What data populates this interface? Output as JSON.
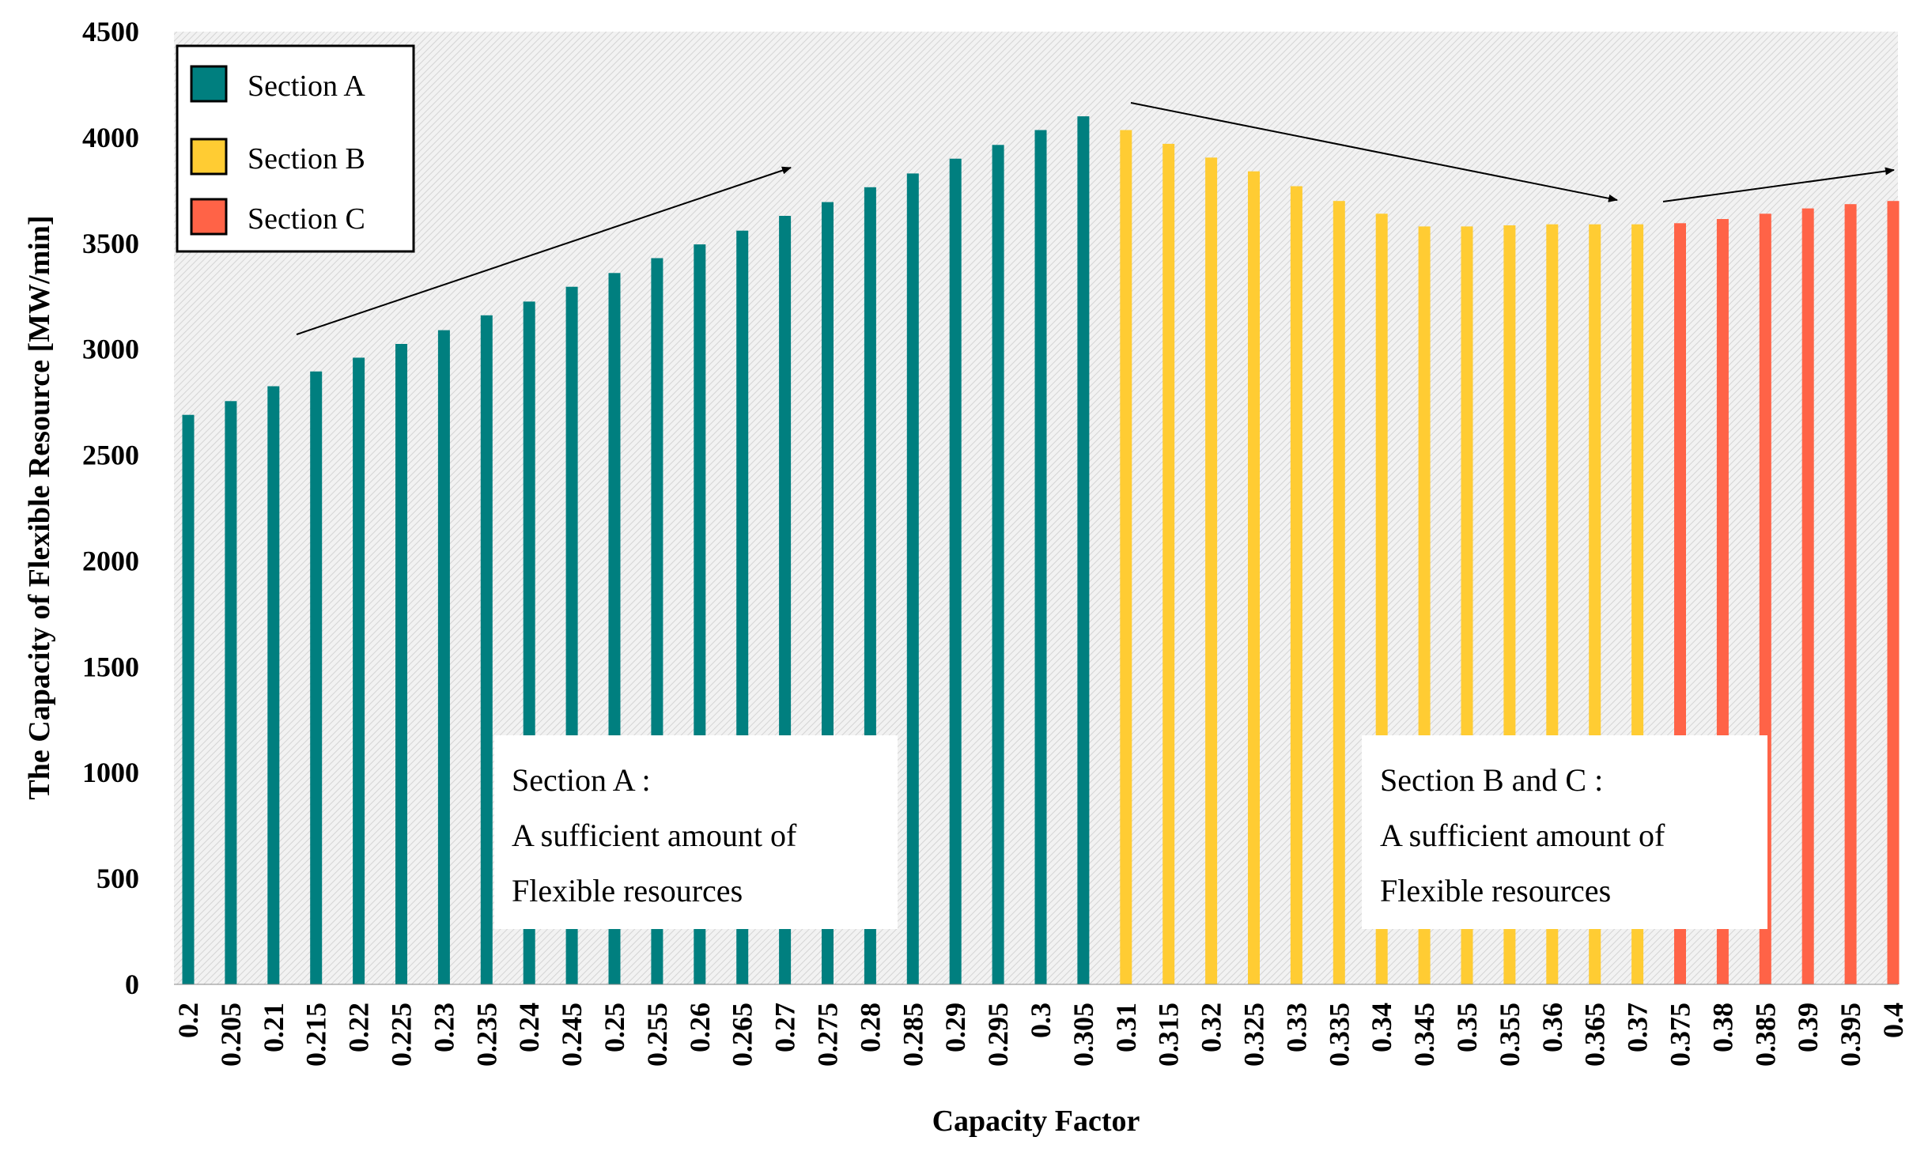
{
  "chart_data": {
    "type": "bar",
    "title": "",
    "xlabel": "Capacity Factor",
    "ylabel": "The Capacity of Flexible Resource [MW/min]",
    "ylim": [
      0,
      4500
    ],
    "yticks": [
      0,
      500,
      1000,
      1500,
      2000,
      2500,
      3000,
      3500,
      4000,
      4500
    ],
    "grid": false,
    "legend_position": "top-left",
    "categories": [
      "0.2",
      "0.205",
      "0.21",
      "0.215",
      "0.22",
      "0.225",
      "0.23",
      "0.235",
      "0.24",
      "0.245",
      "0.25",
      "0.255",
      "0.26",
      "0.265",
      "0.27",
      "0.275",
      "0.28",
      "0.285",
      "0.29",
      "0.295",
      "0.3",
      "0.305",
      "0.31",
      "0.315",
      "0.32",
      "0.325",
      "0.33",
      "0.335",
      "0.34",
      "0.345",
      "0.35",
      "0.355",
      "0.36",
      "0.365",
      "0.37",
      "0.375",
      "0.38",
      "0.385",
      "0.39",
      "0.395",
      "0.4"
    ],
    "values": [
      2690,
      2755,
      2825,
      2895,
      2960,
      3025,
      3090,
      3160,
      3225,
      3295,
      3360,
      3430,
      3495,
      3560,
      3630,
      3695,
      3765,
      3830,
      3900,
      3965,
      4035,
      4100,
      4035,
      3970,
      3905,
      3840,
      3770,
      3700,
      3640,
      3580,
      3580,
      3585,
      3590,
      3590,
      3590,
      3595,
      3615,
      3640,
      3665,
      3685,
      3700
    ],
    "sections": [
      {
        "name": "Section A",
        "color": "#007F7F",
        "start": 0,
        "end": 21
      },
      {
        "name": "Section B",
        "color": "#FFCC33",
        "start": 22,
        "end": 34
      },
      {
        "name": "Section C",
        "color": "#FF6347",
        "start": 35,
        "end": 40
      }
    ],
    "annotations": [
      {
        "lines": [
          "Section A :",
          "A sufficient amount of",
          "Flexible resources"
        ]
      },
      {
        "lines": [
          "Section B and C :",
          "A sufficient amount of",
          "Flexible resources"
        ]
      }
    ]
  }
}
